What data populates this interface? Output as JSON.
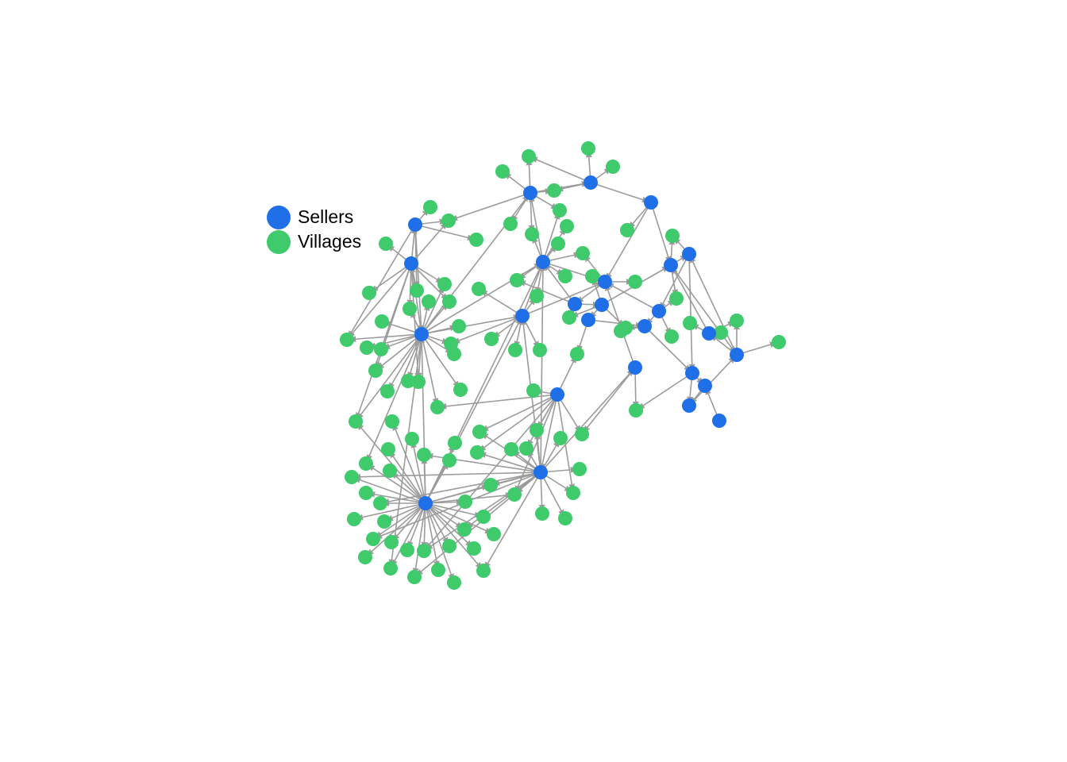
{
  "legend": {
    "sellers_label": "Sellers",
    "villages_label": "Villages"
  },
  "colors": {
    "seller": "#1f6fe8",
    "village": "#3fca6b",
    "edge": "#9b9b9b",
    "node_label": "#ffffff"
  },
  "graph": {
    "directed": true,
    "seller_hubs": [
      "s1",
      "s2",
      "s3",
      "s4",
      "s5",
      "s6",
      "s7",
      "s8",
      "s9",
      "s10",
      "s11",
      "s12",
      "s13",
      "s14",
      "s15",
      "s16",
      "s17",
      "s18",
      "s19",
      "s20",
      "s21",
      "s22"
    ],
    "village_count": 150
  }
}
